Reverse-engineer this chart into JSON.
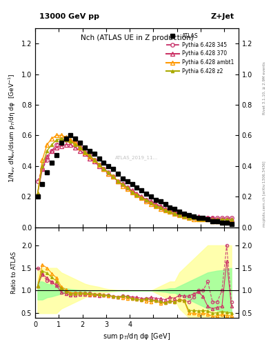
{
  "title_top": "13000 GeV pp",
  "title_right": "Z+Jet",
  "plot_title": "Nch (ATLAS UE in Z production)",
  "xlabel": "sum p$_T$/dη dφ [GeV]",
  "ylabel_main": "1/N$_{ev}$ dN$_{ev}$/dsum p$_T$/dη dφ  [GeV$^{-1}$]",
  "ylabel_ratio": "Ratio to ATLAS",
  "right_label": "Rivet 3.1.10, ≥ 2.9M events",
  "right_label2": "mcplots.cern.ch [arXiv:1306.3436]",
  "watermark": "ATLAS_2019_11...",
  "xlim": [
    0,
    4.3
  ],
  "ylim_main": [
    0,
    1.3
  ],
  "ylim_ratio": [
    0.4,
    2.4
  ],
  "atlas_x": [
    0.05,
    0.15,
    0.25,
    0.35,
    0.45,
    0.55,
    0.65,
    0.75,
    0.85,
    0.95,
    1.05,
    1.15,
    1.25,
    1.35,
    1.45,
    1.55,
    1.65,
    1.75,
    1.85,
    1.95,
    2.05,
    2.15,
    2.25,
    2.35,
    2.45,
    2.55,
    2.65,
    2.75,
    2.85,
    2.95,
    3.05,
    3.15,
    3.25,
    3.35,
    3.45,
    3.55,
    3.65,
    3.75,
    3.85,
    3.95,
    4.05,
    4.15
  ],
  "atlas_y": [
    0.2,
    0.28,
    0.36,
    0.42,
    0.47,
    0.55,
    0.58,
    0.6,
    0.58,
    0.55,
    0.52,
    0.5,
    0.48,
    0.45,
    0.42,
    0.4,
    0.38,
    0.35,
    0.32,
    0.3,
    0.28,
    0.26,
    0.24,
    0.22,
    0.2,
    0.18,
    0.17,
    0.15,
    0.13,
    0.12,
    0.1,
    0.09,
    0.08,
    0.07,
    0.06,
    0.06,
    0.05,
    0.04,
    0.04,
    0.03,
    0.03,
    0.02
  ],
  "p345_x": [
    0.05,
    0.15,
    0.25,
    0.35,
    0.45,
    0.55,
    0.65,
    0.75,
    0.85,
    0.95,
    1.05,
    1.15,
    1.25,
    1.35,
    1.45,
    1.55,
    1.65,
    1.75,
    1.85,
    1.95,
    2.05,
    2.15,
    2.25,
    2.35,
    2.45,
    2.55,
    2.65,
    2.75,
    2.85,
    2.95,
    3.05,
    3.15,
    3.25,
    3.35,
    3.45,
    3.55,
    3.65,
    3.75,
    3.85,
    3.95,
    4.05,
    4.15
  ],
  "p345_y": [
    0.3,
    0.38,
    0.44,
    0.5,
    0.54,
    0.57,
    0.57,
    0.56,
    0.55,
    0.52,
    0.49,
    0.47,
    0.44,
    0.41,
    0.38,
    0.36,
    0.33,
    0.3,
    0.28,
    0.26,
    0.23,
    0.21,
    0.19,
    0.18,
    0.16,
    0.14,
    0.13,
    0.11,
    0.1,
    0.09,
    0.08,
    0.07,
    0.06,
    0.06,
    0.06,
    0.06,
    0.06,
    0.06,
    0.06,
    0.06,
    0.06,
    0.06
  ],
  "p370_x": [
    0.05,
    0.15,
    0.25,
    0.35,
    0.45,
    0.55,
    0.65,
    0.75,
    0.85,
    0.95,
    1.05,
    1.15,
    1.25,
    1.35,
    1.45,
    1.55,
    1.65,
    1.75,
    1.85,
    1.95,
    2.05,
    2.15,
    2.25,
    2.35,
    2.45,
    2.55,
    2.65,
    2.75,
    2.85,
    2.95,
    3.05,
    3.15,
    3.25,
    3.35,
    3.45,
    3.55,
    3.65,
    3.75,
    3.85,
    3.95,
    4.05,
    4.15
  ],
  "p370_y": [
    0.22,
    0.38,
    0.46,
    0.5,
    0.52,
    0.53,
    0.54,
    0.54,
    0.52,
    0.5,
    0.48,
    0.45,
    0.43,
    0.4,
    0.38,
    0.35,
    0.33,
    0.3,
    0.28,
    0.26,
    0.24,
    0.22,
    0.2,
    0.18,
    0.17,
    0.15,
    0.14,
    0.12,
    0.11,
    0.1,
    0.09,
    0.08,
    0.08,
    0.07,
    0.07,
    0.06,
    0.06,
    0.06,
    0.05,
    0.05,
    0.05,
    0.05
  ],
  "pambt1_x": [
    0.05,
    0.15,
    0.25,
    0.35,
    0.45,
    0.55,
    0.65,
    0.75,
    0.85,
    0.95,
    1.05,
    1.15,
    1.25,
    1.35,
    1.45,
    1.55,
    1.65,
    1.75,
    1.85,
    1.95,
    2.05,
    2.15,
    2.25,
    2.35,
    2.45,
    2.55,
    2.65,
    2.75,
    2.85,
    2.95,
    3.05,
    3.15,
    3.25,
    3.35,
    3.45,
    3.55,
    3.65,
    3.75,
    3.85,
    3.95,
    4.05,
    4.15
  ],
  "pambt1_y": [
    0.22,
    0.44,
    0.54,
    0.58,
    0.6,
    0.6,
    0.59,
    0.57,
    0.55,
    0.52,
    0.49,
    0.46,
    0.44,
    0.41,
    0.38,
    0.35,
    0.33,
    0.3,
    0.27,
    0.25,
    0.23,
    0.21,
    0.19,
    0.17,
    0.15,
    0.14,
    0.12,
    0.11,
    0.1,
    0.09,
    0.08,
    0.07,
    0.06,
    0.05,
    0.05,
    0.05,
    0.05,
    0.04,
    0.04,
    0.04,
    0.04,
    0.04
  ],
  "pz2_x": [
    0.05,
    0.15,
    0.25,
    0.35,
    0.45,
    0.55,
    0.65,
    0.75,
    0.85,
    0.95,
    1.05,
    1.15,
    1.25,
    1.35,
    1.45,
    1.55,
    1.65,
    1.75,
    1.85,
    1.95,
    2.05,
    2.15,
    2.25,
    2.35,
    2.45,
    2.55,
    2.65,
    2.75,
    2.85,
    2.95,
    3.05,
    3.15,
    3.25,
    3.35,
    3.45,
    3.55,
    3.65,
    3.75,
    3.85,
    3.95,
    4.05,
    4.15
  ],
  "pz2_y": [
    0.22,
    0.4,
    0.5,
    0.54,
    0.57,
    0.58,
    0.57,
    0.56,
    0.54,
    0.52,
    0.49,
    0.47,
    0.44,
    0.41,
    0.38,
    0.36,
    0.33,
    0.3,
    0.28,
    0.26,
    0.23,
    0.21,
    0.19,
    0.18,
    0.16,
    0.14,
    0.13,
    0.11,
    0.1,
    0.09,
    0.08,
    0.07,
    0.06,
    0.06,
    0.05,
    0.05,
    0.05,
    0.05,
    0.05,
    0.05,
    0.05,
    0.05
  ],
  "ratio_345_y": [
    1.5,
    1.36,
    1.22,
    1.19,
    1.15,
    1.04,
    0.98,
    0.93,
    0.95,
    0.95,
    0.94,
    0.94,
    0.92,
    0.91,
    0.9,
    0.9,
    0.87,
    0.86,
    0.88,
    0.87,
    0.82,
    0.81,
    0.79,
    0.82,
    0.8,
    0.78,
    0.76,
    0.73,
    0.77,
    0.75,
    0.8,
    0.78,
    0.75,
    0.86,
    1.0,
    1.0,
    1.2,
    0.75,
    0.75,
    1.0,
    2.0,
    0.75
  ],
  "ratio_370_y": [
    1.1,
    1.36,
    1.28,
    1.19,
    1.11,
    0.96,
    0.93,
    0.9,
    0.9,
    0.91,
    0.92,
    0.9,
    0.9,
    0.89,
    0.9,
    0.88,
    0.87,
    0.86,
    0.88,
    0.87,
    0.86,
    0.85,
    0.83,
    0.82,
    0.85,
    0.83,
    0.82,
    0.8,
    0.85,
    0.83,
    0.9,
    0.88,
    0.88,
    0.93,
    0.97,
    0.87,
    0.65,
    0.6,
    0.63,
    0.65,
    1.65,
    0.65
  ],
  "ratio_ambt1_y": [
    1.1,
    1.57,
    1.5,
    1.38,
    1.28,
    1.09,
    1.02,
    0.95,
    0.95,
    0.95,
    0.94,
    0.92,
    0.92,
    0.91,
    0.9,
    0.88,
    0.87,
    0.86,
    0.84,
    0.83,
    0.82,
    0.81,
    0.79,
    0.77,
    0.75,
    0.78,
    0.71,
    0.73,
    0.77,
    0.75,
    0.8,
    0.78,
    0.5,
    0.5,
    0.48,
    0.5,
    0.48,
    0.43,
    0.44,
    0.47,
    0.45,
    0.44
  ],
  "ratio_z2_y": [
    1.1,
    1.43,
    1.39,
    1.29,
    1.21,
    1.05,
    0.98,
    0.93,
    0.93,
    0.95,
    0.94,
    0.94,
    0.92,
    0.91,
    0.9,
    0.9,
    0.87,
    0.86,
    0.88,
    0.87,
    0.82,
    0.81,
    0.79,
    0.82,
    0.8,
    0.78,
    0.76,
    0.73,
    0.77,
    0.75,
    0.8,
    0.78,
    0.56,
    0.56,
    0.55,
    0.56,
    0.55,
    0.5,
    0.51,
    0.54,
    0.52,
    0.51
  ],
  "color_345": "#cc4477",
  "color_370": "#cc4477",
  "color_ambt1": "#ff9900",
  "color_z2": "#aaaa00",
  "color_atlas": "#000000",
  "band_yellow_ratios": [
    1.5,
    1.5,
    1.5,
    1.5,
    1.5,
    1.4,
    1.35,
    1.3,
    1.25,
    1.2,
    1.15,
    1.12,
    1.1,
    1.08,
    1.05,
    1.03,
    1.02,
    1.01,
    1.01,
    1.01,
    1.0,
    1.0,
    1.0,
    1.0,
    1.0,
    1.05,
    1.1,
    1.15,
    1.2,
    1.2,
    1.4,
    1.5,
    1.6,
    1.7,
    1.8,
    1.9,
    2.0,
    2.0,
    2.0,
    2.0,
    2.0,
    2.0
  ],
  "band_green_ratios": [
    1.2,
    1.2,
    1.15,
    1.13,
    1.1,
    1.07,
    1.05,
    1.03,
    1.02,
    1.01,
    1.01,
    1.0,
    1.0,
    1.0,
    1.0,
    1.0,
    1.0,
    1.0,
    1.0,
    1.0,
    1.0,
    1.0,
    1.0,
    1.0,
    1.0,
    1.01,
    1.02,
    1.03,
    1.05,
    1.05,
    1.1,
    1.15,
    1.2,
    1.25,
    1.3,
    1.35,
    1.4,
    1.42,
    1.44,
    1.45,
    1.48,
    1.5
  ],
  "bin_edges": [
    0.0,
    0.1,
    0.2,
    0.3,
    0.4,
    0.5,
    0.6,
    0.7,
    0.8,
    0.9,
    1.0,
    1.1,
    1.2,
    1.3,
    1.4,
    1.5,
    1.6,
    1.7,
    1.8,
    1.9,
    2.0,
    2.1,
    2.2,
    2.3,
    2.4,
    2.5,
    2.6,
    2.7,
    2.8,
    2.9,
    3.0,
    3.1,
    3.2,
    3.3,
    3.4,
    3.5,
    3.6,
    3.7,
    3.8,
    3.9,
    4.0,
    4.1,
    4.2
  ]
}
